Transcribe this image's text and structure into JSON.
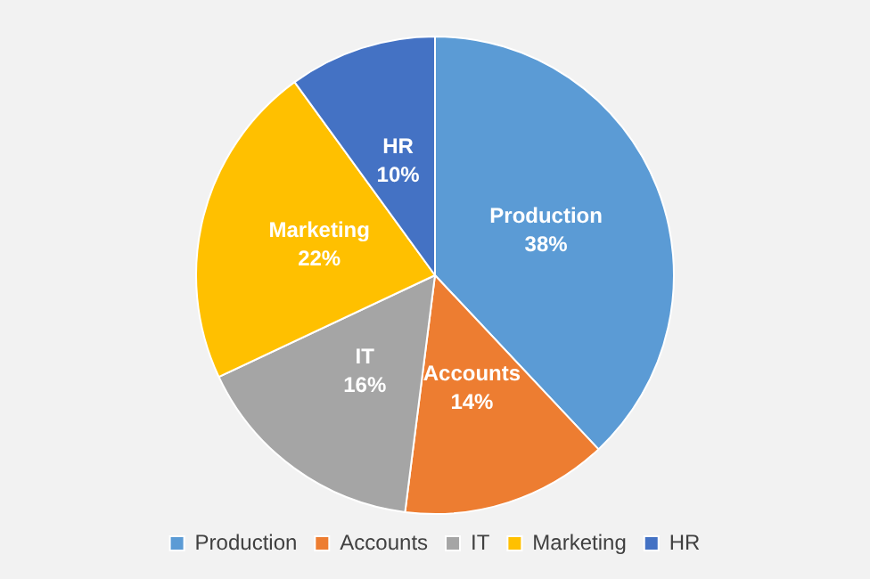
{
  "chart_data": {
    "type": "pie",
    "categories": [
      "Production",
      "Accounts",
      "IT",
      "Marketing",
      "HR"
    ],
    "values": [
      38,
      14,
      16,
      22,
      10
    ],
    "value_labels": [
      "38%",
      "14%",
      "16%",
      "22%",
      "10%"
    ],
    "colors": [
      "#5b9bd5",
      "#ed7d31",
      "#a5a5a5",
      "#ffc000",
      "#4472c4"
    ],
    "legend": "bottom"
  }
}
